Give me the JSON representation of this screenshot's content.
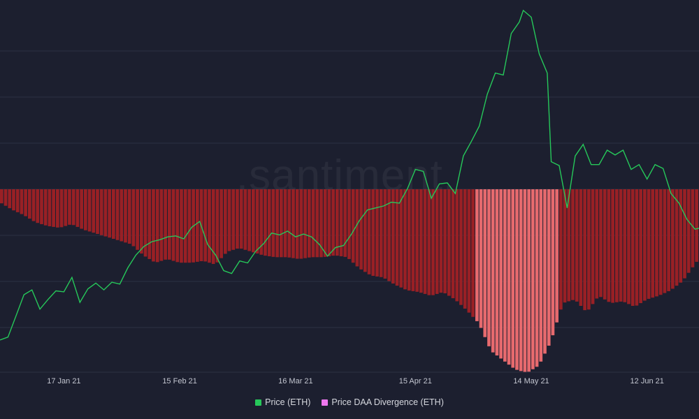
{
  "watermark": ".santiment.",
  "legend": {
    "price_label": "Price (ETH)",
    "divergence_label": "Price DAA Divergence (ETH)"
  },
  "colors": {
    "background": "#1c1f2f",
    "price_line": "#26c85a",
    "divergence_bar": "#992025",
    "divergence_bar_strong": "#e66a6e",
    "legend_price": "#26c85a",
    "legend_divergence": "#ee77ee",
    "gridline": "#2c3043"
  },
  "chart_data": {
    "type": "line",
    "x_tick_labels": [
      "17 Jan 21",
      "15 Feb 21",
      "16 Mar 21",
      "15 Apr 21",
      "14 May 21",
      "12 Jun 21"
    ],
    "x_tick_dates": [
      "2021-01-17",
      "2021-02-15",
      "2021-03-16",
      "2021-04-15",
      "2021-05-14",
      "2021-06-12"
    ],
    "x_range": [
      "2021-01-01",
      "2021-06-25"
    ],
    "y_ticks_shown": false,
    "grid": "horizontal",
    "legend_position": "bottom-center",
    "series": [
      {
        "name": "Price (ETH)",
        "kind": "line",
        "values": [
          [
            "2021-01-01",
            730
          ],
          [
            "2021-01-03",
            760
          ],
          [
            "2021-01-05",
            980
          ],
          [
            "2021-01-07",
            1200
          ],
          [
            "2021-01-09",
            1250
          ],
          [
            "2021-01-11",
            1050
          ],
          [
            "2021-01-13",
            1150
          ],
          [
            "2021-01-15",
            1240
          ],
          [
            "2021-01-17",
            1230
          ],
          [
            "2021-01-19",
            1380
          ],
          [
            "2021-01-21",
            1120
          ],
          [
            "2021-01-23",
            1260
          ],
          [
            "2021-01-25",
            1320
          ],
          [
            "2021-01-27",
            1250
          ],
          [
            "2021-01-29",
            1330
          ],
          [
            "2021-01-31",
            1310
          ],
          [
            "2021-02-02",
            1480
          ],
          [
            "2021-02-04",
            1610
          ],
          [
            "2021-02-06",
            1700
          ],
          [
            "2021-02-08",
            1750
          ],
          [
            "2021-02-10",
            1770
          ],
          [
            "2021-02-12",
            1800
          ],
          [
            "2021-02-14",
            1810
          ],
          [
            "2021-02-16",
            1780
          ],
          [
            "2021-02-18",
            1900
          ],
          [
            "2021-02-20",
            1960
          ],
          [
            "2021-02-22",
            1720
          ],
          [
            "2021-02-24",
            1610
          ],
          [
            "2021-02-26",
            1450
          ],
          [
            "2021-02-28",
            1420
          ],
          [
            "2021-03-02",
            1550
          ],
          [
            "2021-03-04",
            1530
          ],
          [
            "2021-03-06",
            1650
          ],
          [
            "2021-03-08",
            1730
          ],
          [
            "2021-03-10",
            1840
          ],
          [
            "2021-03-12",
            1820
          ],
          [
            "2021-03-14",
            1860
          ],
          [
            "2021-03-16",
            1800
          ],
          [
            "2021-03-18",
            1830
          ],
          [
            "2021-03-20",
            1800
          ],
          [
            "2021-03-22",
            1720
          ],
          [
            "2021-03-24",
            1600
          ],
          [
            "2021-03-26",
            1690
          ],
          [
            "2021-03-28",
            1710
          ],
          [
            "2021-03-30",
            1830
          ],
          [
            "2021-04-01",
            1970
          ],
          [
            "2021-04-03",
            2080
          ],
          [
            "2021-04-05",
            2100
          ],
          [
            "2021-04-07",
            2120
          ],
          [
            "2021-04-09",
            2160
          ],
          [
            "2021-04-11",
            2150
          ],
          [
            "2021-04-13",
            2300
          ],
          [
            "2021-04-15",
            2500
          ],
          [
            "2021-04-17",
            2480
          ],
          [
            "2021-04-19",
            2200
          ],
          [
            "2021-04-21",
            2350
          ],
          [
            "2021-04-23",
            2360
          ],
          [
            "2021-04-25",
            2250
          ],
          [
            "2021-04-27",
            2640
          ],
          [
            "2021-04-29",
            2790
          ],
          [
            "2021-05-01",
            2950
          ],
          [
            "2021-05-03",
            3280
          ],
          [
            "2021-05-05",
            3500
          ],
          [
            "2021-05-07",
            3480
          ],
          [
            "2021-05-09",
            3910
          ],
          [
            "2021-05-11",
            4030
          ],
          [
            "2021-05-12",
            4150
          ],
          [
            "2021-05-14",
            4080
          ],
          [
            "2021-05-16",
            3700
          ],
          [
            "2021-05-18",
            3500
          ],
          [
            "2021-05-19",
            2580
          ],
          [
            "2021-05-21",
            2540
          ],
          [
            "2021-05-23",
            2100
          ],
          [
            "2021-05-25",
            2640
          ],
          [
            "2021-05-27",
            2760
          ],
          [
            "2021-05-29",
            2550
          ],
          [
            "2021-05-31",
            2550
          ],
          [
            "2021-06-02",
            2700
          ],
          [
            "2021-06-04",
            2650
          ],
          [
            "2021-06-06",
            2700
          ],
          [
            "2021-06-08",
            2500
          ],
          [
            "2021-06-10",
            2550
          ],
          [
            "2021-06-12",
            2400
          ],
          [
            "2021-06-14",
            2550
          ],
          [
            "2021-06-16",
            2510
          ],
          [
            "2021-06-18",
            2250
          ],
          [
            "2021-06-20",
            2150
          ],
          [
            "2021-06-22",
            1980
          ],
          [
            "2021-06-24",
            1880
          ],
          [
            "2021-06-25",
            1890
          ]
        ]
      },
      {
        "name": "Price DAA Divergence (ETH)",
        "kind": "bar",
        "relative_depth": [
          [
            "2021-01-01",
            0.07
          ],
          [
            "2021-01-04",
            0.11
          ],
          [
            "2021-01-07",
            0.14
          ],
          [
            "2021-01-10",
            0.18
          ],
          [
            "2021-01-13",
            0.2
          ],
          [
            "2021-01-16",
            0.21
          ],
          [
            "2021-01-19",
            0.19
          ],
          [
            "2021-01-22",
            0.22
          ],
          [
            "2021-01-25",
            0.24
          ],
          [
            "2021-01-28",
            0.26
          ],
          [
            "2021-01-31",
            0.28
          ],
          [
            "2021-02-03",
            0.3
          ],
          [
            "2021-02-06",
            0.36
          ],
          [
            "2021-02-09",
            0.4
          ],
          [
            "2021-02-12",
            0.38
          ],
          [
            "2021-02-15",
            0.4
          ],
          [
            "2021-02-18",
            0.4
          ],
          [
            "2021-02-21",
            0.39
          ],
          [
            "2021-02-24",
            0.41
          ],
          [
            "2021-02-27",
            0.34
          ],
          [
            "2021-03-02",
            0.32
          ],
          [
            "2021-03-05",
            0.34
          ],
          [
            "2021-03-08",
            0.36
          ],
          [
            "2021-03-11",
            0.37
          ],
          [
            "2021-03-14",
            0.37
          ],
          [
            "2021-03-17",
            0.38
          ],
          [
            "2021-03-20",
            0.37
          ],
          [
            "2021-03-23",
            0.37
          ],
          [
            "2021-03-26",
            0.36
          ],
          [
            "2021-03-29",
            0.37
          ],
          [
            "2021-04-01",
            0.43
          ],
          [
            "2021-04-04",
            0.47
          ],
          [
            "2021-04-07",
            0.48
          ],
          [
            "2021-04-10",
            0.52
          ],
          [
            "2021-04-13",
            0.55
          ],
          [
            "2021-04-16",
            0.56
          ],
          [
            "2021-04-19",
            0.58
          ],
          [
            "2021-04-22",
            0.56
          ],
          [
            "2021-04-25",
            0.6
          ],
          [
            "2021-04-28",
            0.66
          ],
          [
            "2021-05-01",
            0.73
          ],
          [
            "2021-05-04",
            0.88
          ],
          [
            "2021-05-07",
            0.93
          ],
          [
            "2021-05-10",
            0.98
          ],
          [
            "2021-05-13",
            1.0
          ],
          [
            "2021-05-16",
            0.96
          ],
          [
            "2021-05-19",
            0.83
          ],
          [
            "2021-05-22",
            0.62
          ],
          [
            "2021-05-25",
            0.6
          ],
          [
            "2021-05-28",
            0.67
          ],
          [
            "2021-05-31",
            0.58
          ],
          [
            "2021-06-03",
            0.62
          ],
          [
            "2021-06-06",
            0.61
          ],
          [
            "2021-06-09",
            0.64
          ],
          [
            "2021-06-12",
            0.6
          ],
          [
            "2021-06-15",
            0.58
          ],
          [
            "2021-06-18",
            0.55
          ],
          [
            "2021-06-21",
            0.5
          ],
          [
            "2021-06-25",
            0.38
          ]
        ]
      }
    ]
  }
}
